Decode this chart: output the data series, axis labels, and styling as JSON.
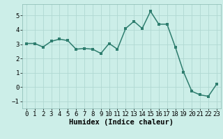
{
  "x": [
    0,
    1,
    2,
    3,
    4,
    5,
    6,
    7,
    8,
    9,
    10,
    11,
    12,
    13,
    14,
    15,
    16,
    17,
    18,
    19,
    20,
    21,
    22,
    23
  ],
  "y": [
    3.05,
    3.05,
    2.8,
    3.2,
    3.35,
    3.25,
    2.65,
    2.7,
    2.65,
    2.35,
    3.05,
    2.65,
    4.1,
    4.6,
    4.1,
    5.3,
    4.4,
    4.4,
    2.8,
    1.05,
    -0.3,
    -0.55,
    -0.65,
    0.2
  ],
  "line_color": "#2e7d6e",
  "marker": "s",
  "marker_size": 2.2,
  "bg_color": "#cceee8",
  "grid_color": "#b0d8d2",
  "xlabel": "Humidex (Indice chaleur)",
  "ylim": [
    -1.5,
    5.8
  ],
  "xlim": [
    -0.5,
    23.5
  ],
  "yticks": [
    -1,
    0,
    1,
    2,
    3,
    4,
    5
  ],
  "xticks": [
    0,
    1,
    2,
    3,
    4,
    5,
    6,
    7,
    8,
    9,
    10,
    11,
    12,
    13,
    14,
    15,
    16,
    17,
    18,
    19,
    20,
    21,
    22,
    23
  ],
  "tick_fontsize": 6.5,
  "xlabel_fontsize": 7.5,
  "line_width": 1.1
}
